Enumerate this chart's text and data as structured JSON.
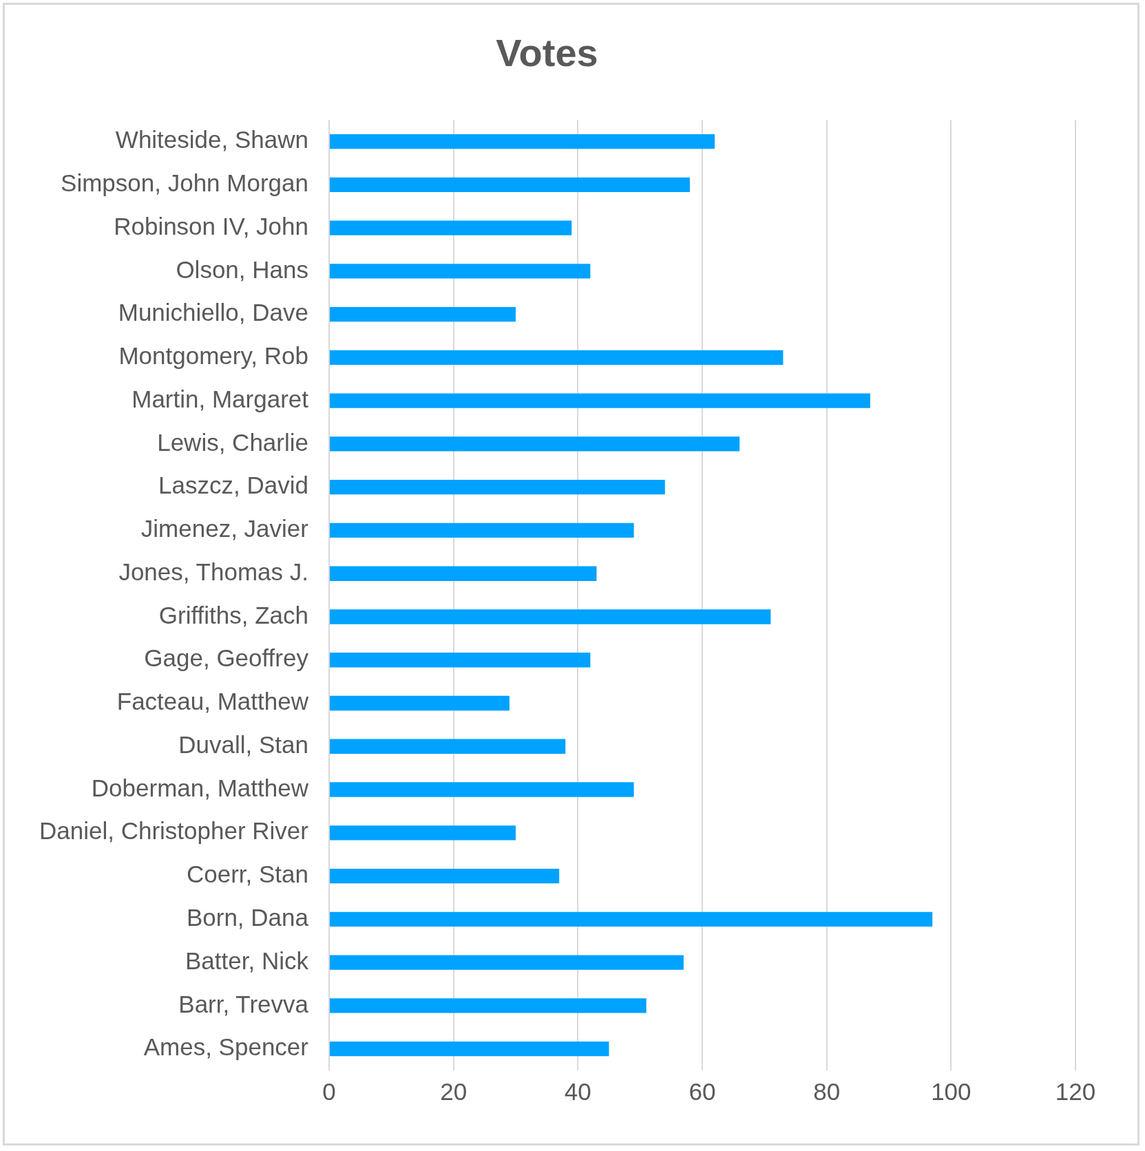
{
  "chart_data": {
    "type": "bar",
    "orientation": "horizontal",
    "title": "Votes",
    "categories": [
      "Whiteside, Shawn",
      "Simpson, John Morgan",
      "Robinson IV, John",
      "Olson, Hans",
      "Munichiello, Dave",
      "Montgomery, Rob",
      "Martin, Margaret",
      "Lewis, Charlie",
      "Laszcz, David",
      "Jimenez, Javier",
      "Jones, Thomas J.",
      "Griffiths, Zach",
      "Gage, Geoffrey",
      "Facteau, Matthew",
      "Duvall, Stan",
      "Doberman, Matthew",
      "Daniel, Christopher River",
      "Coerr, Stan",
      "Born, Dana",
      "Batter, Nick",
      "Barr, Trevva",
      "Ames, Spencer"
    ],
    "values": [
      62,
      58,
      39,
      42,
      30,
      73,
      87,
      66,
      54,
      49,
      43,
      71,
      42,
      29,
      38,
      49,
      30,
      37,
      97,
      57,
      51,
      45
    ],
    "color": "#00a2ff",
    "xlim": [
      0,
      120
    ],
    "xticks": [
      0,
      20,
      40,
      60,
      80,
      100,
      120
    ],
    "grid": "x",
    "legend": false
  }
}
